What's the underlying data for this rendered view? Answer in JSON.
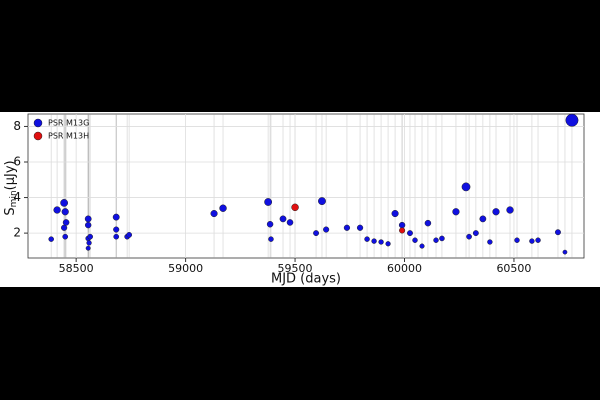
{
  "chart_data": {
    "type": "scatter",
    "xlabel": "MJD (days)",
    "ylabel": {
      "symbol": "S",
      "subscript": "min",
      "unit": "(μJy)"
    },
    "xlim": [
      58280,
      60820
    ],
    "xticks": [
      58500,
      59000,
      59500,
      60000,
      60500
    ],
    "ylim": [
      0.6,
      8.7
    ],
    "yticks": [
      2,
      4,
      6,
      8
    ],
    "grid": true,
    "legend": "upper left",
    "series": [
      {
        "name": "PSR M13G",
        "color": "#1010e0",
        "x": [
          58386,
          58413,
          58445,
          58450,
          58445,
          58450,
          58454,
          58555,
          58555,
          58555,
          58559,
          58564,
          58555,
          58683,
          58683,
          58683,
          58733,
          58742,
          59130,
          59171,
          59377,
          59386,
          59390,
          59445,
          59477,
          59596,
          59623,
          59642,
          59737,
          59797,
          59829,
          59861,
          59893,
          59925,
          59957,
          59989,
          60025,
          60048,
          60080,
          60107,
          60144,
          60171,
          60235,
          60281,
          60295,
          60326,
          60358,
          60390,
          60418,
          60482,
          60514,
          60582,
          60610,
          60701,
          60733,
          60765
        ],
        "values": [
          1.66,
          3.3,
          3.7,
          3.2,
          2.3,
          1.8,
          2.6,
          2.8,
          2.45,
          1.7,
          1.45,
          1.8,
          1.15,
          2.9,
          2.2,
          1.8,
          1.8,
          1.9,
          3.1,
          3.4,
          3.75,
          2.5,
          1.66,
          2.8,
          2.6,
          2.0,
          3.8,
          2.2,
          2.3,
          2.3,
          1.66,
          1.55,
          1.5,
          1.4,
          3.1,
          2.45,
          2.0,
          1.6,
          1.27,
          2.56,
          1.6,
          1.7,
          3.2,
          4.6,
          1.8,
          2.0,
          2.8,
          1.5,
          3.2,
          3.3,
          1.6,
          1.55,
          1.6,
          2.05,
          0.93,
          8.35
        ]
      },
      {
        "name": "PSR M13H",
        "color": "#e01010",
        "x": [
          59500,
          59989
        ],
        "values": [
          3.45,
          2.15
        ]
      }
    ]
  }
}
